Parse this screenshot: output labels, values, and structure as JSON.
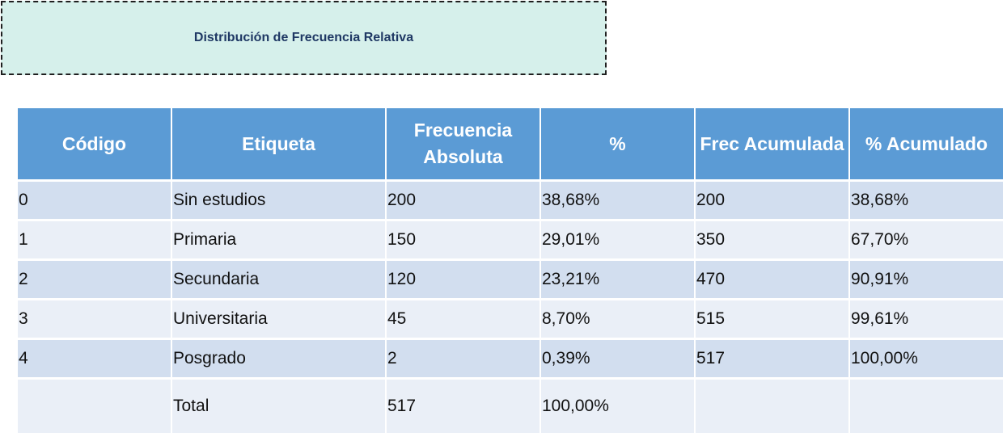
{
  "title": "Distribución de Frecuencia Relativa",
  "table": {
    "headers": [
      "Código",
      "Etiqueta",
      "Frecuencia Absoluta",
      "%",
      "Frec Acumulada",
      "% Acumulado"
    ],
    "rows": [
      [
        "0",
        "Sin estudios",
        "200",
        "38,68%",
        "200",
        "38,68%"
      ],
      [
        "1",
        "Primaria",
        "150",
        "29,01%",
        "350",
        "67,70%"
      ],
      [
        "2",
        "Secundaria",
        "120",
        "23,21%",
        "470",
        "90,91%"
      ],
      [
        "3",
        "Universitaria",
        "45",
        "8,70%",
        "515",
        "99,61%"
      ],
      [
        "4",
        "Posgrado",
        "2",
        "0,39%",
        "517",
        "100,00%"
      ]
    ],
    "total_row": [
      "",
      "Total",
      "517",
      "100,00%",
      "",
      ""
    ]
  },
  "colors": {
    "header_bg": "#5b9bd5",
    "row_dark": "#d2deef",
    "row_light": "#eaeff7",
    "title_bg": "#d6f0eb",
    "title_text": "#1f3864"
  }
}
